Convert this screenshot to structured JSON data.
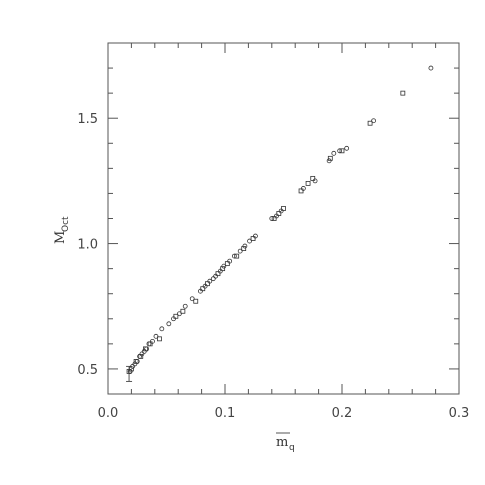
{
  "chart_data": {
    "type": "scatter",
    "title": "",
    "xlabel": {
      "main": "m",
      "sub": "q",
      "overline": true
    },
    "ylabel": {
      "main": "M",
      "sub": "Oct"
    },
    "xlim": [
      0.0,
      0.3
    ],
    "ylim": [
      0.4,
      1.8
    ],
    "xticks_major": [
      0.0,
      0.1,
      0.2,
      0.3
    ],
    "xtick_labels": [
      "0.0",
      "0.1",
      "0.2",
      "0.3"
    ],
    "yticks_major": [
      0.5,
      1.0,
      1.5
    ],
    "ytick_labels": [
      "0.5",
      "1.0",
      "1.5"
    ],
    "grid": false,
    "legend": "none",
    "series": [
      {
        "marker": "circle",
        "x": [
          0.019,
          0.021,
          0.023,
          0.025,
          0.027,
          0.029,
          0.031,
          0.033,
          0.035,
          0.038,
          0.041,
          0.046,
          0.052,
          0.056,
          0.061,
          0.066,
          0.072,
          0.079,
          0.083,
          0.087,
          0.09,
          0.092,
          0.096,
          0.099,
          0.104,
          0.108,
          0.113,
          0.117,
          0.121,
          0.126,
          0.14,
          0.144,
          0.148,
          0.167,
          0.177,
          0.189,
          0.193,
          0.198,
          0.204,
          0.227,
          0.276
        ],
        "y": [
          0.49,
          0.51,
          0.52,
          0.53,
          0.55,
          0.56,
          0.57,
          0.58,
          0.6,
          0.61,
          0.63,
          0.66,
          0.68,
          0.7,
          0.72,
          0.75,
          0.78,
          0.81,
          0.83,
          0.85,
          0.86,
          0.87,
          0.89,
          0.91,
          0.93,
          0.95,
          0.97,
          0.99,
          1.01,
          1.03,
          1.1,
          1.11,
          1.13,
          1.22,
          1.25,
          1.33,
          1.36,
          1.37,
          1.38,
          1.49,
          1.7
        ]
      },
      {
        "marker": "square",
        "x": [
          0.018,
          0.02,
          0.024,
          0.028,
          0.032,
          0.036,
          0.044,
          0.058,
          0.064,
          0.075,
          0.081,
          0.085,
          0.094,
          0.098,
          0.102,
          0.11,
          0.116,
          0.124,
          0.142,
          0.146,
          0.15,
          0.165,
          0.171,
          0.175,
          0.19,
          0.2,
          0.224,
          0.252
        ],
        "y": [
          0.49,
          0.5,
          0.53,
          0.55,
          0.58,
          0.6,
          0.62,
          0.71,
          0.73,
          0.77,
          0.82,
          0.84,
          0.88,
          0.9,
          0.92,
          0.95,
          0.98,
          1.02,
          1.1,
          1.12,
          1.14,
          1.21,
          1.24,
          1.26,
          1.34,
          1.37,
          1.48,
          1.6
        ]
      }
    ],
    "error_bars": [
      {
        "x": 0.018,
        "y": 0.48,
        "yerr": 0.03
      }
    ]
  }
}
